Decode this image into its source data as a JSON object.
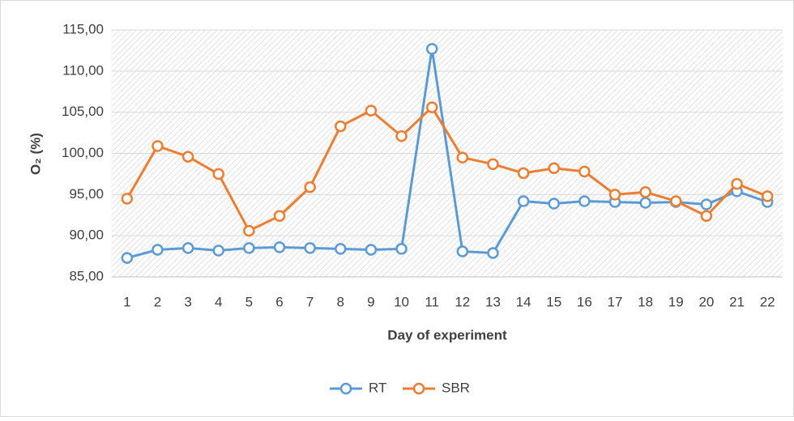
{
  "chart_data": {
    "type": "line",
    "categories": [
      "1",
      "2",
      "3",
      "4",
      "5",
      "6",
      "7",
      "8",
      "9",
      "10",
      "11",
      "12",
      "13",
      "14",
      "15",
      "16",
      "17",
      "18",
      "19",
      "20",
      "21",
      "22"
    ],
    "series": [
      {
        "name": "RT",
        "color": "#5b9bd5",
        "values": [
          87.3,
          88.3,
          88.5,
          88.2,
          88.5,
          88.6,
          88.5,
          88.4,
          88.3,
          88.4,
          112.7,
          88.1,
          87.9,
          94.2,
          93.9,
          94.2,
          94.1,
          94.0,
          94.1,
          93.8,
          95.4,
          94.1
        ]
      },
      {
        "name": "SBR",
        "color": "#ed7d31",
        "values": [
          94.5,
          100.9,
          99.6,
          97.5,
          90.6,
          92.4,
          95.9,
          103.3,
          105.2,
          102.1,
          105.6,
          99.5,
          98.7,
          97.6,
          98.2,
          97.8,
          95.0,
          95.3,
          94.2,
          92.4,
          96.3,
          94.8
        ]
      }
    ],
    "x_label": "Day of experiment",
    "y_label": "O₂ (%)",
    "ylim": [
      85,
      115
    ],
    "yticks": [
      {
        "value": 85,
        "label": "85,00"
      },
      {
        "value": 90,
        "label": "90,00"
      },
      {
        "value": 95,
        "label": "95,00"
      },
      {
        "value": 100,
        "label": "100,00"
      },
      {
        "value": 105,
        "label": "105,00"
      },
      {
        "value": 110,
        "label": "110,00"
      },
      {
        "value": 115,
        "label": "115,00"
      }
    ],
    "legend": "bottom"
  }
}
